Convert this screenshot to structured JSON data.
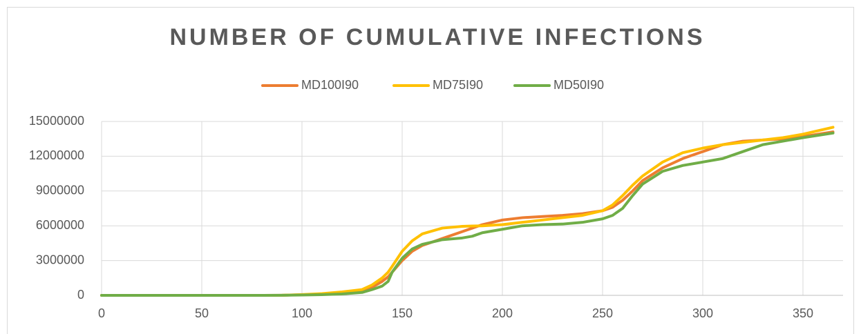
{
  "chart_data": {
    "type": "line",
    "title": "NUMBER OF CUMULATIVE INFECTIONS",
    "x": [
      0,
      20,
      40,
      60,
      80,
      90,
      100,
      110,
      120,
      130,
      135,
      140,
      143,
      145,
      150,
      155,
      160,
      170,
      180,
      185,
      190,
      200,
      210,
      220,
      230,
      240,
      250,
      255,
      260,
      265,
      270,
      280,
      290,
      300,
      310,
      320,
      330,
      340,
      350,
      365
    ],
    "series": [
      {
        "name": "MD100I90",
        "color": "#ed7d31",
        "values": [
          0,
          0,
          0,
          0,
          0,
          10000,
          50000,
          100000,
          200000,
          400000,
          700000,
          1200000,
          1600000,
          2000000,
          3000000,
          3800000,
          4300000,
          4900000,
          5500000,
          5800000,
          6100000,
          6500000,
          6700000,
          6800000,
          6900000,
          7050000,
          7300000,
          7600000,
          8200000,
          9000000,
          9900000,
          11000000,
          11800000,
          12400000,
          13000000,
          13300000,
          13400000,
          13500000,
          13700000,
          14100000
        ]
      },
      {
        "name": "MD75I90",
        "color": "#ffc000",
        "values": [
          0,
          0,
          0,
          0,
          0,
          10000,
          70000,
          150000,
          300000,
          500000,
          900000,
          1500000,
          2000000,
          2500000,
          3800000,
          4700000,
          5300000,
          5800000,
          5950000,
          5980000,
          6000000,
          6100000,
          6300000,
          6500000,
          6700000,
          6900000,
          7300000,
          7800000,
          8600000,
          9500000,
          10300000,
          11500000,
          12300000,
          12700000,
          13000000,
          13200000,
          13400000,
          13600000,
          13900000,
          14500000
        ]
      },
      {
        "name": "MD50I90",
        "color": "#70ad47",
        "values": [
          0,
          0,
          0,
          0,
          0,
          5000,
          30000,
          60000,
          120000,
          250000,
          500000,
          800000,
          1200000,
          2000000,
          3200000,
          4000000,
          4400000,
          4800000,
          4950000,
          5100000,
          5400000,
          5700000,
          6000000,
          6100000,
          6150000,
          6300000,
          6600000,
          6900000,
          7500000,
          8600000,
          9600000,
          10700000,
          11200000,
          11500000,
          11800000,
          12400000,
          13000000,
          13300000,
          13600000,
          14000000
        ]
      }
    ],
    "xlim": [
      0,
      370
    ],
    "xticks": [
      0,
      50,
      100,
      150,
      200,
      250,
      300,
      350
    ],
    "ylim": [
      0,
      15000000
    ],
    "yticks": [
      0,
      3000000,
      6000000,
      9000000,
      12000000,
      15000000
    ],
    "grid": true,
    "legend": "top"
  }
}
